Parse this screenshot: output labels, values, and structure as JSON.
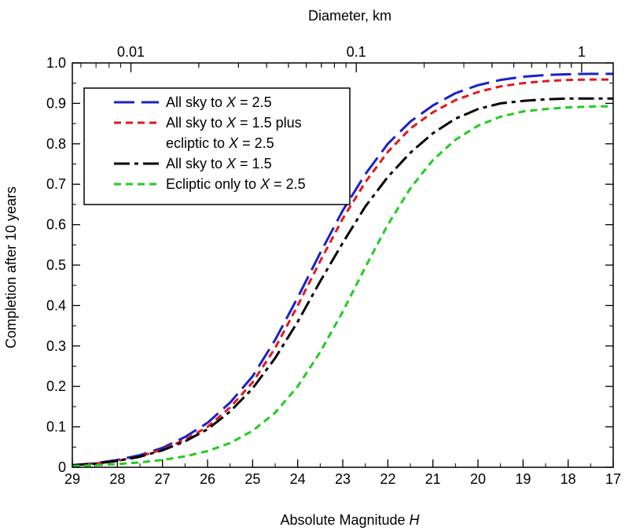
{
  "chart_data": {
    "type": "line",
    "title": "",
    "xlabel": "Absolute Magnitude H",
    "xlabel_parts": {
      "prefix": "Absolute Magnitude ",
      "italic": "H"
    },
    "ylabel": "Completion after 10 years",
    "x2label": "Diameter, km",
    "xlim": [
      29,
      17
    ],
    "ylim": [
      0,
      1.0
    ],
    "x_ticks": [
      29,
      28,
      27,
      26,
      25,
      24,
      23,
      22,
      21,
      20,
      19,
      18,
      17
    ],
    "y_ticks": [
      0,
      0.1,
      0.2,
      0.3,
      0.4,
      0.5,
      0.6,
      0.7,
      0.8,
      0.9,
      1.0
    ],
    "y_tick_labels": [
      "0",
      "0.1",
      "0.2",
      "0.3",
      "0.4",
      "0.5",
      "0.6",
      "0.7",
      "0.8",
      "0.9",
      "1.0"
    ],
    "x2_ticks": [
      {
        "label": "0.01",
        "H": 27.7
      },
      {
        "label": "0.1",
        "H": 22.7
      },
      {
        "label": "1",
        "H": 17.7
      }
    ],
    "grid": false,
    "legend_position": "top-left",
    "series": [
      {
        "name": "All sky to X = 2.5",
        "legend_parts": [
          "All sky to ",
          "X",
          " = 2.5"
        ],
        "color": "#1a22c8",
        "dash": "long-dash",
        "x": [
          29,
          28.5,
          28,
          27.5,
          27,
          26.5,
          26,
          25.5,
          25,
          24.5,
          24,
          23.5,
          23,
          22.5,
          22,
          21.5,
          21,
          20.5,
          20,
          19.5,
          19,
          18.5,
          18,
          17.5,
          17
        ],
        "y": [
          0.005,
          0.01,
          0.018,
          0.03,
          0.048,
          0.075,
          0.11,
          0.16,
          0.225,
          0.315,
          0.42,
          0.53,
          0.635,
          0.725,
          0.8,
          0.855,
          0.895,
          0.925,
          0.945,
          0.958,
          0.966,
          0.97,
          0.972,
          0.973,
          0.973
        ]
      },
      {
        "name": "All sky to X = 1.5 plus ecliptic to X = 2.5",
        "legend_parts": [
          "All sky to ",
          "X",
          " = 1.5 plus"
        ],
        "legend_parts_line2": [
          "ecliptic to ",
          "X",
          " = 2.5"
        ],
        "color": "#e5161c",
        "dash": "short-dash",
        "x": [
          29,
          28.5,
          28,
          27.5,
          27,
          26.5,
          26,
          25.5,
          25,
          24.5,
          24,
          23.5,
          23,
          22.5,
          22,
          21.5,
          21,
          20.5,
          20,
          19.5,
          19,
          18.5,
          18,
          17.5,
          17
        ],
        "y": [
          0.005,
          0.009,
          0.016,
          0.027,
          0.044,
          0.068,
          0.1,
          0.148,
          0.21,
          0.295,
          0.4,
          0.51,
          0.615,
          0.705,
          0.78,
          0.838,
          0.878,
          0.908,
          0.928,
          0.942,
          0.95,
          0.955,
          0.958,
          0.959,
          0.959
        ]
      },
      {
        "name": "All sky to X = 1.5",
        "legend_parts": [
          "All sky to ",
          "X",
          " = 1.5"
        ],
        "color": "#000000",
        "dash": "dash-dot",
        "x": [
          29,
          28.5,
          28,
          27.5,
          27,
          26.5,
          26,
          25.5,
          25,
          24.5,
          24,
          23.5,
          23,
          22.5,
          22,
          21.5,
          21,
          20.5,
          20,
          19.5,
          19,
          18.5,
          18,
          17.5,
          17
        ],
        "y": [
          0.005,
          0.009,
          0.016,
          0.026,
          0.042,
          0.064,
          0.094,
          0.138,
          0.195,
          0.27,
          0.36,
          0.46,
          0.555,
          0.645,
          0.718,
          0.778,
          0.826,
          0.862,
          0.886,
          0.9,
          0.906,
          0.91,
          0.912,
          0.912,
          0.912
        ]
      },
      {
        "name": "Ecliptic only to X = 2.5",
        "legend_parts": [
          "Ecliptic only to ",
          "X",
          " = 2.5"
        ],
        "color": "#22cc22",
        "dash": "short-dash",
        "x": [
          29,
          28.5,
          28,
          27.5,
          27,
          26.5,
          26,
          25.5,
          25,
          24.5,
          24,
          23.5,
          23,
          22.5,
          22,
          21.5,
          21,
          20.5,
          20,
          19.5,
          19,
          18.5,
          18,
          17.5,
          17
        ],
        "y": [
          0.003,
          0.005,
          0.008,
          0.012,
          0.018,
          0.027,
          0.04,
          0.06,
          0.09,
          0.135,
          0.2,
          0.285,
          0.385,
          0.495,
          0.6,
          0.69,
          0.76,
          0.81,
          0.845,
          0.867,
          0.88,
          0.886,
          0.89,
          0.892,
          0.893
        ]
      }
    ]
  }
}
